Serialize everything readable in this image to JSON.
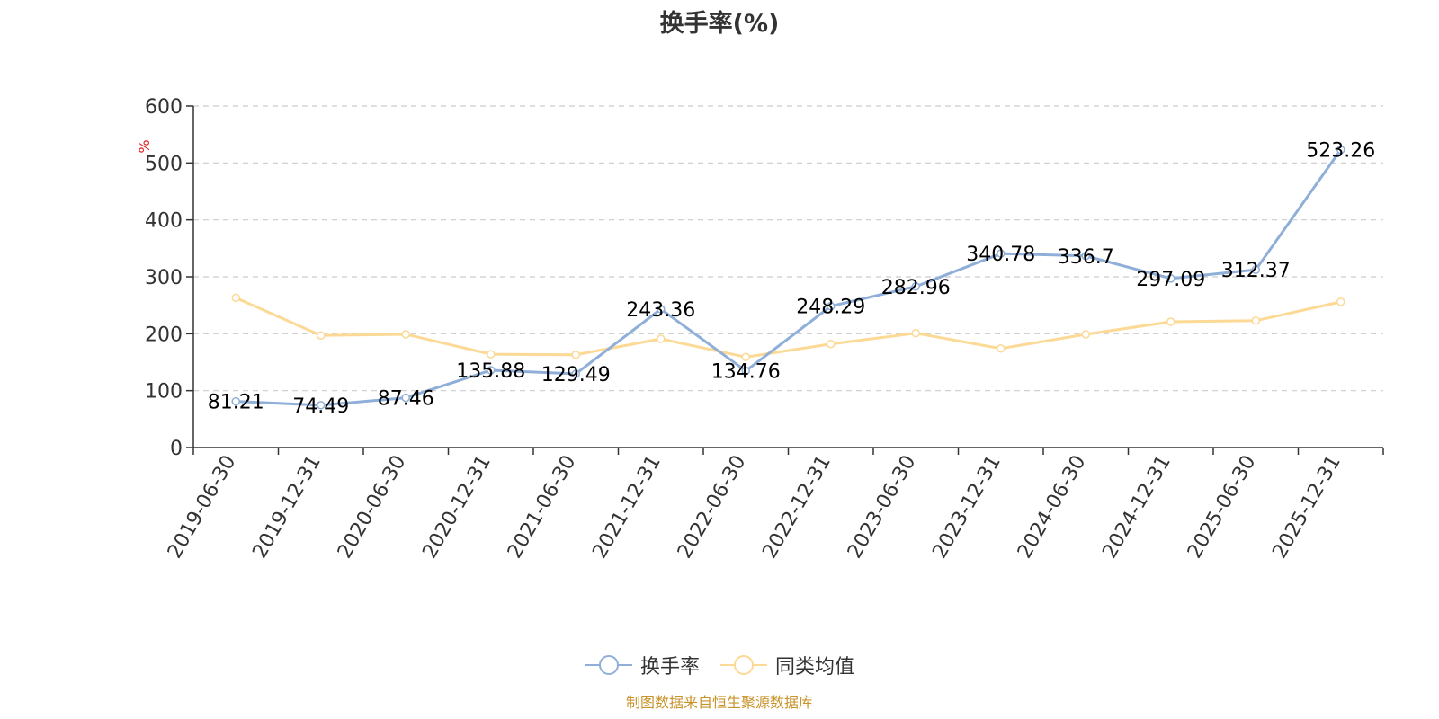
{
  "chart_data": {
    "type": "line",
    "title": "换手率(%)",
    "ylabel": "%",
    "ylim": [
      0,
      600
    ],
    "yticks": [
      0,
      100,
      200,
      300,
      400,
      500,
      600
    ],
    "grid": true,
    "legend_position": "bottom",
    "categories": [
      "2019-06-30",
      "2019-12-31",
      "2020-06-30",
      "2020-12-31",
      "2021-06-30",
      "2021-12-31",
      "2022-06-30",
      "2022-12-31",
      "2023-06-30",
      "2023-12-31",
      "2024-06-30",
      "2024-12-31",
      "2025-06-30",
      "2025-12-31"
    ],
    "series": [
      {
        "name": "换手率",
        "color": "#8fafd9",
        "values": [
          81.21,
          74.49,
          87.46,
          135.88,
          129.49,
          243.36,
          134.76,
          248.29,
          282.96,
          340.78,
          336.7,
          297.09,
          312.37,
          523.26
        ],
        "value_labels": [
          "81.21",
          "74.49",
          "87.46",
          "135.88",
          "129.49",
          "243.36",
          "134.76",
          "248.29",
          "282.96",
          "340.78",
          "336.7",
          "297.09",
          "312.37",
          "523.26"
        ]
      },
      {
        "name": "同类均值",
        "color": "#fcd995",
        "values": [
          263,
          197,
          199,
          164,
          163,
          191,
          159,
          182,
          201,
          174,
          199,
          221,
          223,
          256
        ]
      }
    ],
    "source": "制图数据来自恒生聚源数据库",
    "source_color": "#c8932a",
    "ylabel_color": "#e02020"
  }
}
